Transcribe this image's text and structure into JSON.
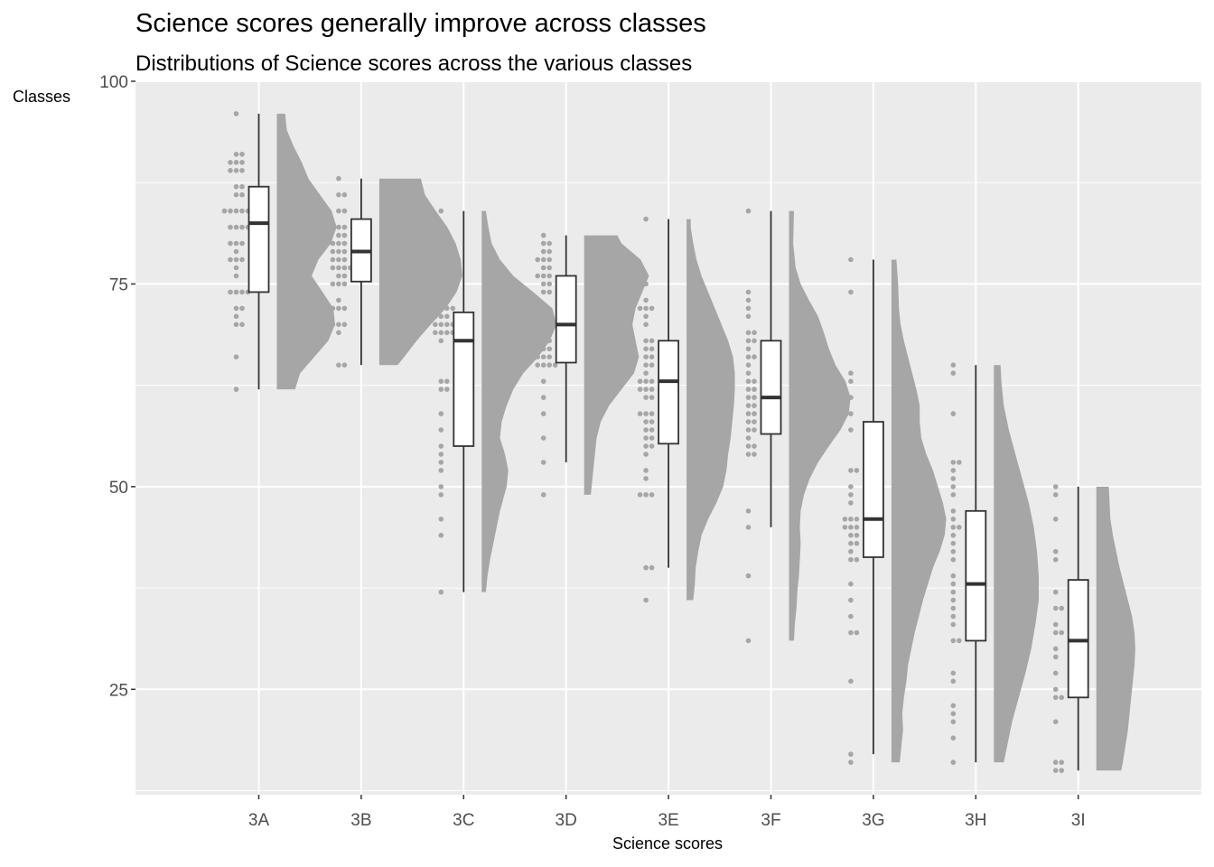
{
  "chart_data": {
    "type": "raincloud",
    "title": "Science scores generally improve across classes",
    "subtitle": "Distributions of Science scores across the various classes",
    "xlabel": "Science scores",
    "ylabel": "Classes",
    "categories": [
      "3A",
      "3B",
      "3C",
      "3D",
      "3E",
      "3F",
      "3G",
      "3H",
      "3I"
    ],
    "ylim": [
      12,
      100
    ],
    "yticks": [
      25,
      50,
      75,
      100
    ],
    "grid": true,
    "colors": {
      "panel": "#ebebeb",
      "grid": "#ffffff",
      "density": "#a6a6a6",
      "points": "#a6a6a6",
      "box_fill": "#ffffff",
      "box_line": "#333333"
    },
    "boxes": [
      {
        "class": "3A",
        "min": 62,
        "q1": 74,
        "median": 82.5,
        "q3": 87,
        "max": 96
      },
      {
        "class": "3B",
        "min": 65,
        "q1": 75.3,
        "median": 79,
        "q3": 83,
        "max": 88
      },
      {
        "class": "3C",
        "min": 37,
        "q1": 55,
        "median": 68,
        "q3": 71.5,
        "max": 84
      },
      {
        "class": "3D",
        "min": 53,
        "q1": 65.3,
        "median": 70,
        "q3": 76,
        "max": 81
      },
      {
        "class": "3E",
        "min": 40,
        "q1": 55.3,
        "median": 63,
        "q3": 68,
        "max": 83
      },
      {
        "class": "3F",
        "min": 45,
        "q1": 56.5,
        "median": 61,
        "q3": 68,
        "max": 84
      },
      {
        "class": "3G",
        "min": 17,
        "q1": 41.3,
        "median": 46,
        "q3": 58,
        "max": 78
      },
      {
        "class": "3H",
        "min": 16,
        "q1": 31,
        "median": 38,
        "q3": 47,
        "max": 65
      },
      {
        "class": "3I",
        "min": 15,
        "q1": 24,
        "median": 31,
        "q3": 38.5,
        "max": 50
      }
    ],
    "points": [
      {
        "class": "3A",
        "values": [
          96,
          91,
          91,
          90,
          90,
          90,
          89,
          89,
          89,
          87,
          87,
          86,
          86,
          84,
          84,
          84,
          84,
          84,
          82,
          82,
          82,
          82,
          80,
          80,
          80,
          79,
          78,
          78,
          78,
          77,
          76,
          74,
          74,
          74,
          74,
          72,
          72,
          71,
          70,
          70,
          66,
          62
        ]
      },
      {
        "class": "3B",
        "values": [
          88,
          86,
          86,
          84,
          84,
          82,
          82,
          81,
          81,
          80,
          80,
          80,
          79,
          79,
          79,
          78,
          78,
          78,
          77,
          77,
          77,
          77,
          76,
          76,
          75,
          75,
          75,
          73,
          72,
          72,
          72,
          70,
          70,
          70,
          69,
          65,
          65
        ]
      },
      {
        "class": "3C",
        "values": [
          84,
          82,
          80,
          79,
          77,
          75,
          74,
          72,
          72,
          72,
          72,
          71,
          71,
          71,
          70,
          70,
          70,
          70,
          69,
          69,
          69,
          69,
          68,
          63,
          63,
          62,
          62,
          59,
          57,
          55,
          54,
          53,
          52,
          50,
          49,
          46,
          44,
          37
        ]
      },
      {
        "class": "3D",
        "values": [
          81,
          80,
          80,
          79,
          79,
          78,
          78,
          78,
          77,
          77,
          76,
          76,
          76,
          75,
          75,
          74,
          74,
          72,
          71,
          71,
          70,
          70,
          69,
          69,
          68,
          68,
          67,
          67,
          67,
          66,
          66,
          66,
          65,
          65,
          65,
          65,
          63,
          61,
          59,
          56,
          53,
          49
        ]
      },
      {
        "class": "3E",
        "values": [
          83,
          75,
          73,
          72,
          72,
          72,
          71,
          70,
          68,
          68,
          67,
          67,
          66,
          66,
          65,
          65,
          64,
          63,
          63,
          63,
          62,
          62,
          62,
          61,
          61,
          59,
          59,
          59,
          58,
          58,
          57,
          57,
          56,
          56,
          55,
          55,
          54,
          52,
          51,
          49,
          49,
          49,
          40,
          40,
          36
        ]
      },
      {
        "class": "3F",
        "values": [
          84,
          74,
          73,
          72,
          71,
          69,
          69,
          68,
          68,
          67,
          66,
          66,
          65,
          64,
          63,
          63,
          62,
          62,
          61,
          61,
          60,
          60,
          59,
          59,
          58,
          58,
          57,
          57,
          56,
          55,
          55,
          54,
          54,
          47,
          45,
          39,
          31
        ]
      },
      {
        "class": "3G",
        "values": [
          78,
          74,
          64,
          63,
          61,
          59,
          57,
          52,
          52,
          50,
          49,
          48,
          46,
          46,
          46,
          45,
          45,
          45,
          44,
          44,
          43,
          43,
          42,
          41,
          41,
          38,
          36,
          34,
          32,
          32,
          26,
          17,
          16
        ]
      },
      {
        "class": "3H",
        "values": [
          65,
          64,
          59,
          53,
          53,
          52,
          51,
          50,
          49,
          47,
          46,
          45,
          45,
          44,
          43,
          42,
          41,
          39,
          38,
          37,
          36,
          35,
          34,
          33,
          31,
          31,
          27,
          26,
          23,
          22,
          21,
          19,
          16
        ]
      },
      {
        "class": "3I",
        "values": [
          50,
          49,
          46,
          42,
          41,
          37,
          35,
          35,
          33,
          32,
          32,
          30,
          29,
          27,
          25,
          24,
          24,
          21,
          16,
          16,
          15,
          15
        ]
      }
    ],
    "densities": [
      {
        "class": "3A",
        "range": [
          62,
          96
        ],
        "profile": [
          [
            62,
            0.22
          ],
          [
            64,
            0.28
          ],
          [
            66,
            0.45
          ],
          [
            68,
            0.62
          ],
          [
            70,
            0.7
          ],
          [
            72,
            0.68
          ],
          [
            74,
            0.55
          ],
          [
            76,
            0.42
          ],
          [
            78,
            0.5
          ],
          [
            80,
            0.65
          ],
          [
            82,
            0.72
          ],
          [
            84,
            0.66
          ],
          [
            86,
            0.52
          ],
          [
            88,
            0.38
          ],
          [
            90,
            0.3
          ],
          [
            92,
            0.2
          ],
          [
            94,
            0.12
          ],
          [
            96,
            0.1
          ]
        ]
      },
      {
        "class": "3B",
        "range": [
          65,
          88
        ],
        "profile": [
          [
            65,
            0.22
          ],
          [
            66,
            0.3
          ],
          [
            68,
            0.45
          ],
          [
            70,
            0.62
          ],
          [
            72,
            0.8
          ],
          [
            74,
            0.93
          ],
          [
            76,
            1.0
          ],
          [
            78,
            0.98
          ],
          [
            80,
            0.92
          ],
          [
            82,
            0.82
          ],
          [
            84,
            0.68
          ],
          [
            86,
            0.55
          ],
          [
            88,
            0.5
          ]
        ]
      },
      {
        "class": "3C",
        "range": [
          37,
          84
        ],
        "profile": [
          [
            37,
            0.05
          ],
          [
            39,
            0.07
          ],
          [
            41,
            0.1
          ],
          [
            44,
            0.16
          ],
          [
            47,
            0.22
          ],
          [
            50,
            0.3
          ],
          [
            52,
            0.32
          ],
          [
            54,
            0.28
          ],
          [
            56,
            0.22
          ],
          [
            58,
            0.24
          ],
          [
            60,
            0.3
          ],
          [
            62,
            0.38
          ],
          [
            64,
            0.5
          ],
          [
            66,
            0.68
          ],
          [
            68,
            0.82
          ],
          [
            70,
            0.9
          ],
          [
            72,
            0.85
          ],
          [
            74,
            0.62
          ],
          [
            76,
            0.38
          ],
          [
            78,
            0.22
          ],
          [
            80,
            0.12
          ],
          [
            82,
            0.08
          ],
          [
            84,
            0.05
          ]
        ]
      },
      {
        "class": "3D",
        "range": [
          49,
          81
        ],
        "profile": [
          [
            49,
            0.08
          ],
          [
            51,
            0.1
          ],
          [
            53,
            0.12
          ],
          [
            56,
            0.15
          ],
          [
            58,
            0.2
          ],
          [
            60,
            0.3
          ],
          [
            62,
            0.45
          ],
          [
            64,
            0.6
          ],
          [
            66,
            0.66
          ],
          [
            68,
            0.62
          ],
          [
            70,
            0.58
          ],
          [
            72,
            0.62
          ],
          [
            74,
            0.7
          ],
          [
            76,
            0.78
          ],
          [
            78,
            0.68
          ],
          [
            80,
            0.45
          ],
          [
            81,
            0.4
          ]
        ]
      },
      {
        "class": "3E",
        "range": [
          36,
          83
        ],
        "profile": [
          [
            36,
            0.08
          ],
          [
            38,
            0.1
          ],
          [
            40,
            0.11
          ],
          [
            42,
            0.14
          ],
          [
            44,
            0.18
          ],
          [
            46,
            0.26
          ],
          [
            48,
            0.36
          ],
          [
            50,
            0.44
          ],
          [
            52,
            0.48
          ],
          [
            54,
            0.5
          ],
          [
            56,
            0.53
          ],
          [
            58,
            0.55
          ],
          [
            60,
            0.57
          ],
          [
            62,
            0.58
          ],
          [
            64,
            0.58
          ],
          [
            66,
            0.56
          ],
          [
            68,
            0.5
          ],
          [
            70,
            0.42
          ],
          [
            72,
            0.34
          ],
          [
            74,
            0.26
          ],
          [
            76,
            0.18
          ],
          [
            78,
            0.12
          ],
          [
            80,
            0.08
          ],
          [
            82,
            0.05
          ],
          [
            83,
            0.05
          ]
        ]
      },
      {
        "class": "3F",
        "range": [
          31,
          84
        ],
        "profile": [
          [
            31,
            0.06
          ],
          [
            33,
            0.07
          ],
          [
            35,
            0.09
          ],
          [
            37,
            0.1
          ],
          [
            39,
            0.12
          ],
          [
            41,
            0.13
          ],
          [
            43,
            0.14
          ],
          [
            45,
            0.13
          ],
          [
            47,
            0.14
          ],
          [
            49,
            0.18
          ],
          [
            51,
            0.25
          ],
          [
            53,
            0.35
          ],
          [
            55,
            0.48
          ],
          [
            57,
            0.62
          ],
          [
            59,
            0.72
          ],
          [
            61,
            0.74
          ],
          [
            63,
            0.68
          ],
          [
            65,
            0.56
          ],
          [
            67,
            0.48
          ],
          [
            69,
            0.42
          ],
          [
            71,
            0.35
          ],
          [
            73,
            0.24
          ],
          [
            75,
            0.14
          ],
          [
            77,
            0.08
          ],
          [
            80,
            0.05
          ],
          [
            84,
            0.06
          ]
        ]
      },
      {
        "class": "3G",
        "range": [
          16,
          78
        ],
        "profile": [
          [
            16,
            0.1
          ],
          [
            18,
            0.12
          ],
          [
            20,
            0.14
          ],
          [
            22,
            0.13
          ],
          [
            24,
            0.15
          ],
          [
            26,
            0.18
          ],
          [
            28,
            0.2
          ],
          [
            30,
            0.24
          ],
          [
            32,
            0.28
          ],
          [
            34,
            0.33
          ],
          [
            36,
            0.38
          ],
          [
            38,
            0.44
          ],
          [
            40,
            0.5
          ],
          [
            42,
            0.58
          ],
          [
            44,
            0.64
          ],
          [
            46,
            0.66
          ],
          [
            48,
            0.62
          ],
          [
            50,
            0.56
          ],
          [
            52,
            0.5
          ],
          [
            54,
            0.42
          ],
          [
            56,
            0.36
          ],
          [
            58,
            0.34
          ],
          [
            60,
            0.34
          ],
          [
            62,
            0.3
          ],
          [
            64,
            0.25
          ],
          [
            66,
            0.2
          ],
          [
            68,
            0.15
          ],
          [
            70,
            0.11
          ],
          [
            72,
            0.09
          ],
          [
            75,
            0.08
          ],
          [
            78,
            0.06
          ]
        ]
      },
      {
        "class": "3H",
        "range": [
          16,
          65
        ],
        "profile": [
          [
            16,
            0.12
          ],
          [
            18,
            0.16
          ],
          [
            21,
            0.22
          ],
          [
            24,
            0.3
          ],
          [
            27,
            0.38
          ],
          [
            30,
            0.45
          ],
          [
            33,
            0.5
          ],
          [
            36,
            0.54
          ],
          [
            39,
            0.54
          ],
          [
            42,
            0.52
          ],
          [
            45,
            0.48
          ],
          [
            48,
            0.42
          ],
          [
            51,
            0.34
          ],
          [
            54,
            0.26
          ],
          [
            57,
            0.18
          ],
          [
            60,
            0.12
          ],
          [
            63,
            0.09
          ],
          [
            65,
            0.08
          ]
        ]
      },
      {
        "class": "3I",
        "range": [
          15,
          50
        ],
        "profile": [
          [
            15,
            0.3
          ],
          [
            16,
            0.32
          ],
          [
            18,
            0.35
          ],
          [
            20,
            0.38
          ],
          [
            22,
            0.4
          ],
          [
            24,
            0.42
          ],
          [
            26,
            0.44
          ],
          [
            28,
            0.46
          ],
          [
            30,
            0.47
          ],
          [
            32,
            0.46
          ],
          [
            34,
            0.43
          ],
          [
            36,
            0.38
          ],
          [
            38,
            0.33
          ],
          [
            40,
            0.28
          ],
          [
            42,
            0.24
          ],
          [
            44,
            0.2
          ],
          [
            46,
            0.17
          ],
          [
            48,
            0.16
          ],
          [
            50,
            0.15
          ]
        ]
      }
    ]
  }
}
